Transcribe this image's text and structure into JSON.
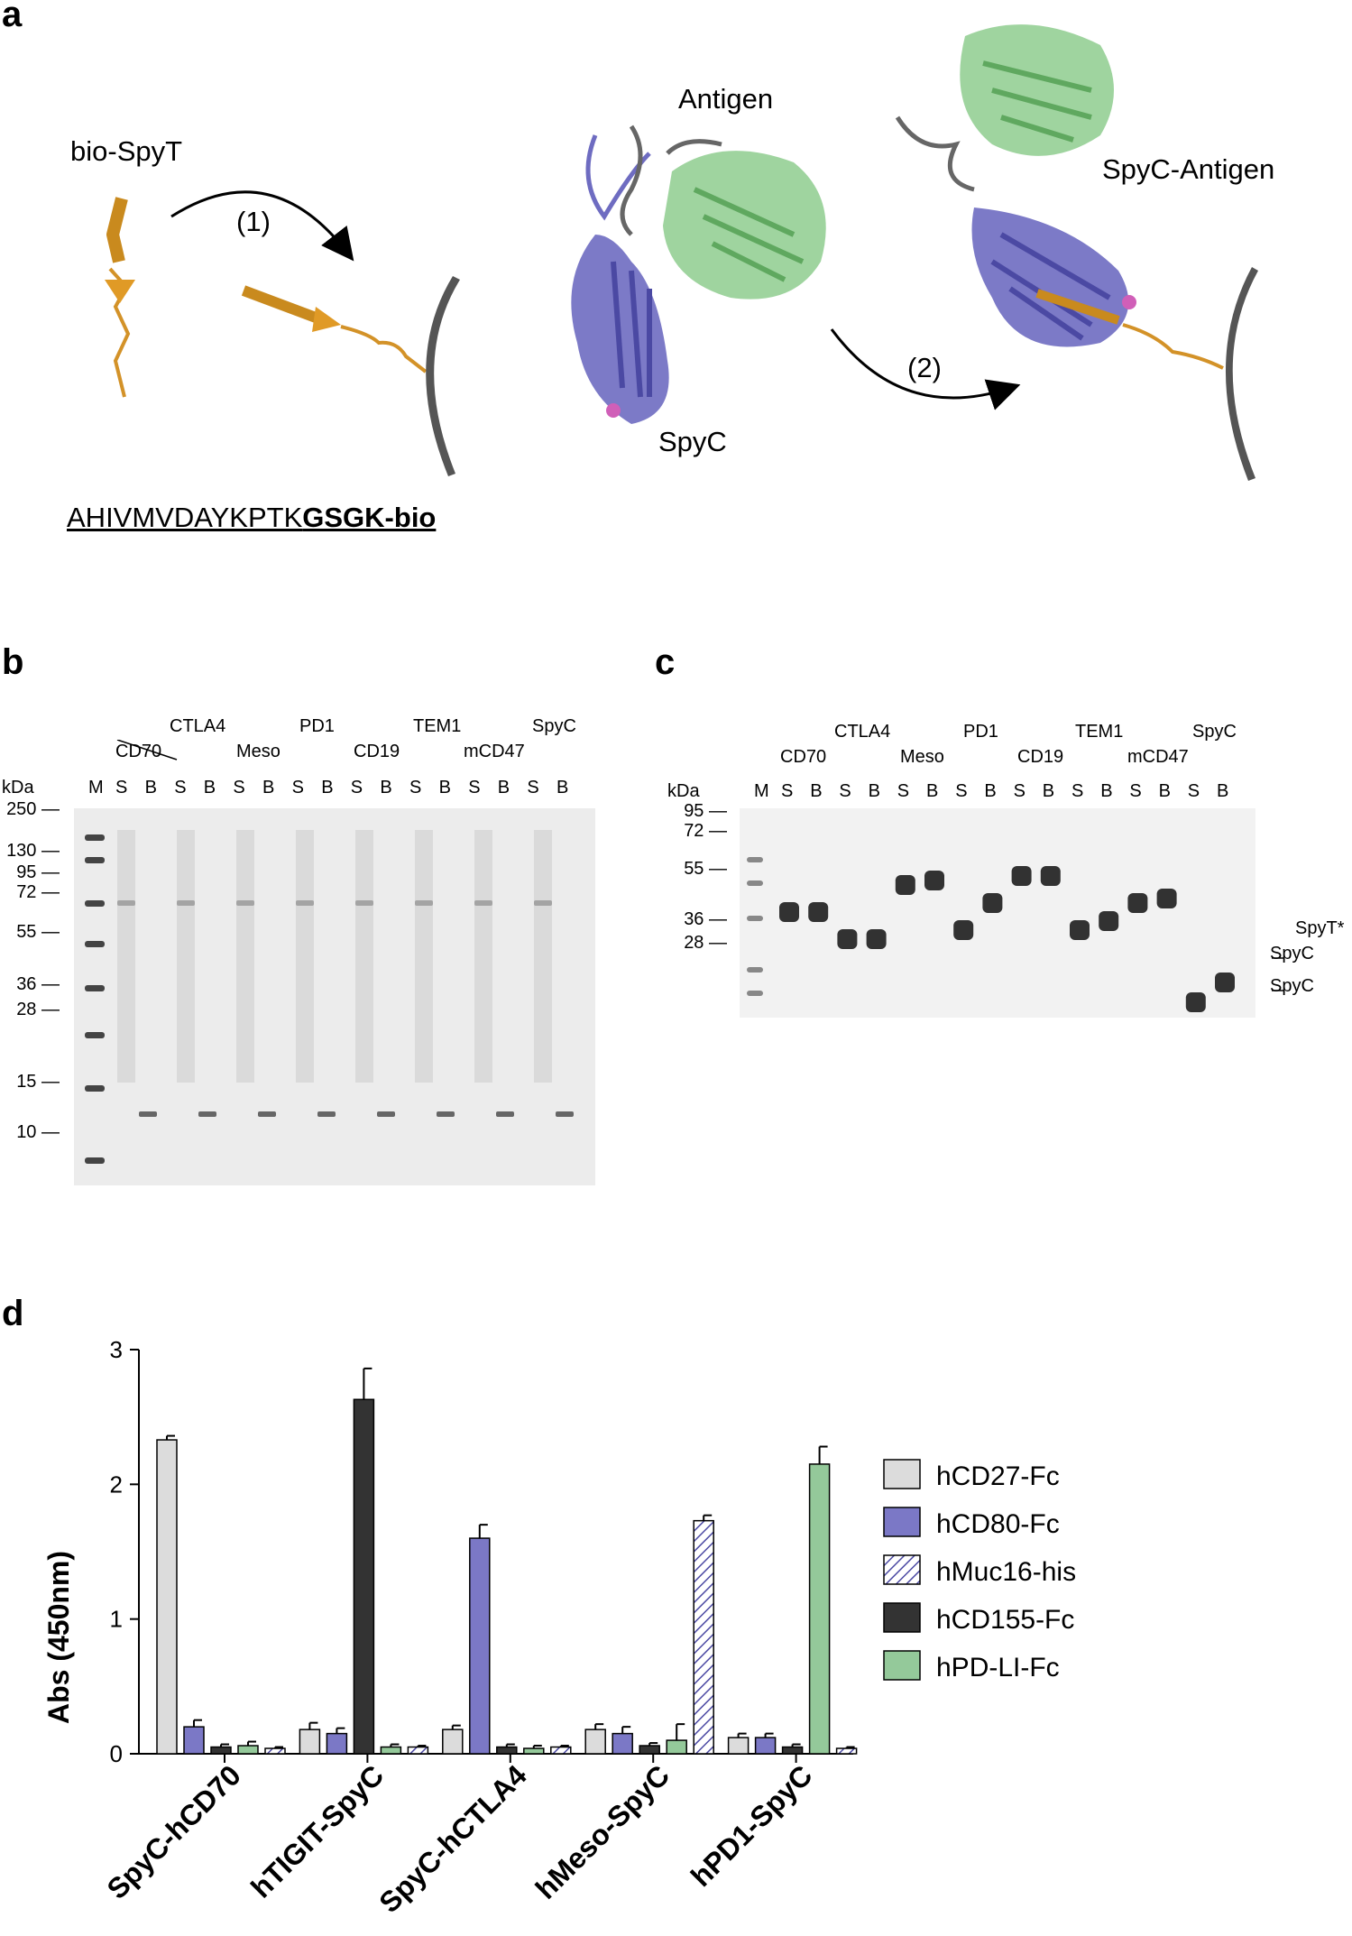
{
  "panels": {
    "a": "a",
    "b": "b",
    "c": "c",
    "d": "d"
  },
  "panel_a": {
    "bio_spyt": "bio-SpyT",
    "step1": "(1)",
    "step2": "(2)",
    "antigen": "Antigen",
    "spyc": "SpyC",
    "spyc_antigen": "SpyC-Antigen",
    "sequence_plain": "AHIVMVDAYKPTK",
    "sequence_bold": "GSGK-bio"
  },
  "gel_b": {
    "kda": "kDa",
    "marker": "M",
    "top_labels": [
      "CTLA4",
      "PD1",
      "TEM1",
      "SpyC"
    ],
    "bottom_labels": [
      "CD70",
      "Meso",
      "CD19",
      "mCD47"
    ],
    "lanes": [
      "S",
      "B",
      "S",
      "B",
      "S",
      "B",
      "S",
      "B",
      "S",
      "B",
      "S",
      "B",
      "S",
      "B",
      "S",
      "B"
    ],
    "ladder": [
      "250",
      "130",
      "95",
      "72",
      "55",
      "36",
      "28",
      "15",
      "10"
    ]
  },
  "gel_c": {
    "kda": "kDa",
    "marker": "M",
    "top_labels": [
      "CTLA4",
      "PD1",
      "TEM1",
      "SpyC"
    ],
    "bottom_labels": [
      "CD70",
      "Meso",
      "CD19",
      "mCD47"
    ],
    "lanes": [
      "S",
      "B",
      "S",
      "B",
      "S",
      "B",
      "S",
      "B",
      "S",
      "B",
      "S",
      "B",
      "S",
      "B",
      "S",
      "B"
    ],
    "ladder": [
      "95",
      "72",
      "55",
      "36",
      "28"
    ],
    "right_labels": [
      "SpyT*",
      "SpyC",
      "SpyC"
    ]
  },
  "chart_data": {
    "type": "bar",
    "ylabel": "Abs (450nm)",
    "ylim": [
      0,
      3
    ],
    "yticks": [
      "0",
      "1",
      "2",
      "3"
    ],
    "categories": [
      "SpyC-hCD70",
      "hTIGIT-SpyC",
      "SpyC-hCTLA4",
      "hMeso-SpyC",
      "hPD1-SpyC"
    ],
    "series": [
      {
        "name": "hCD27-Fc",
        "color": "#dcdcdc",
        "values": [
          2.33,
          0.18,
          0.18,
          0.18,
          0.12
        ],
        "errors": [
          0.03,
          0.05,
          0.03,
          0.04,
          0.03
        ]
      },
      {
        "name": "hCD80-Fc",
        "color": "#7b78c6",
        "values": [
          0.2,
          0.15,
          1.6,
          0.15,
          0.12
        ],
        "errors": [
          0.05,
          0.04,
          0.1,
          0.05,
          0.03
        ]
      },
      {
        "name": "hCD155-Fc",
        "color": "#333333",
        "values": [
          0.05,
          2.63,
          0.05,
          0.06,
          0.05
        ],
        "errors": [
          0.02,
          0.23,
          0.02,
          0.02,
          0.02
        ]
      },
      {
        "name": "hPD-LI-Fc",
        "color": "#94c99a",
        "values": [
          0.06,
          0.05,
          0.04,
          0.1,
          2.15
        ],
        "errors": [
          0.03,
          0.02,
          0.02,
          0.12,
          0.13
        ]
      },
      {
        "name": "hMuc16-his",
        "color": "#ffffff",
        "hatch": true,
        "values": [
          0.04,
          0.05,
          0.05,
          1.73,
          0.04
        ],
        "errors": [
          0.01,
          0.01,
          0.01,
          0.04,
          0.01
        ]
      }
    ],
    "legend": [
      "hCD27-Fc",
      "hCD80-Fc",
      "hMuc16-his",
      "hCD155-Fc",
      "hPD-LI-Fc"
    ],
    "legend_position": "right"
  }
}
